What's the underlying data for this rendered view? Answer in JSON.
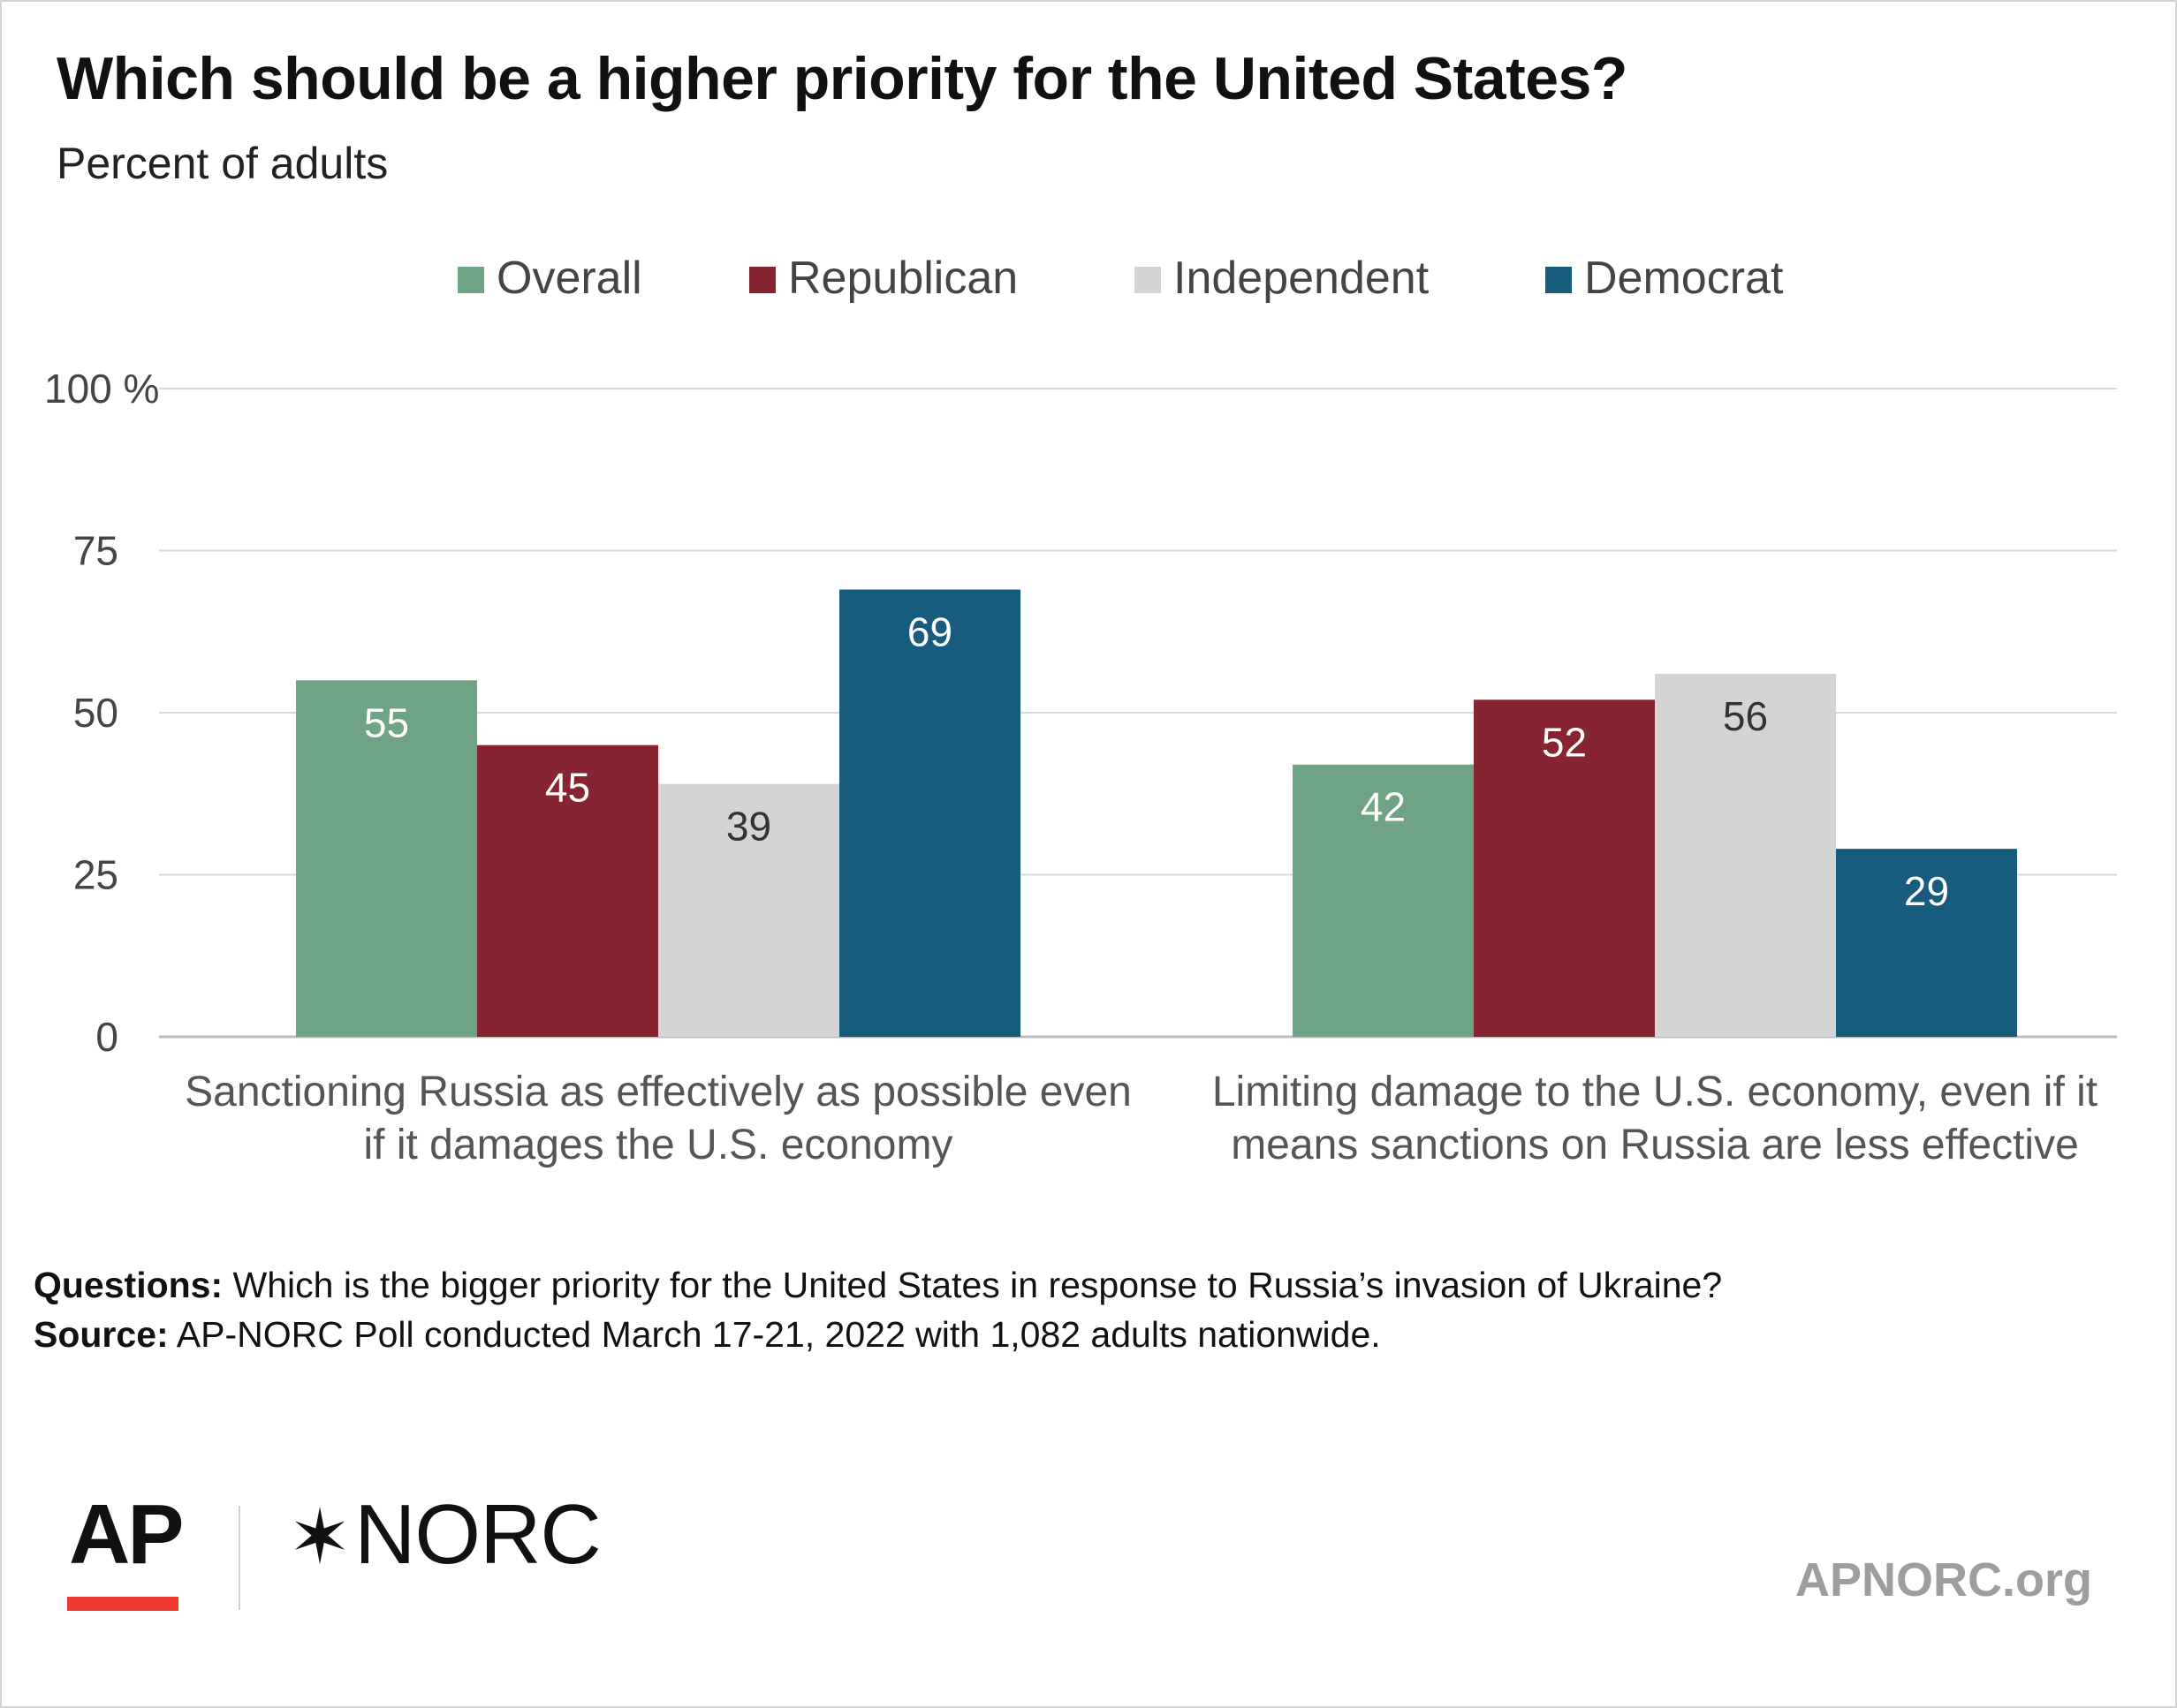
{
  "title": "Which should be a higher priority for the United States?",
  "subtitle": "Percent of adults",
  "chart_data": {
    "type": "bar",
    "categories": [
      [
        "Sanctioning Russia as effectively as possible even",
        "if it damages the U.S. economy"
      ],
      [
        "Limiting damage to the U.S. economy, even if it",
        "means sanctions on Russia are less effective"
      ]
    ],
    "series": [
      {
        "name": "Overall",
        "color": "#6fa386",
        "values": [
          55,
          42
        ],
        "label_color": "#ffffff"
      },
      {
        "name": "Republican",
        "color": "#862432",
        "values": [
          45,
          52
        ],
        "label_color": "#ffffff"
      },
      {
        "name": "Independent",
        "color": "#d4d4d4",
        "values": [
          39,
          56
        ],
        "label_color": "#333333"
      },
      {
        "name": "Democrat",
        "color": "#175c7c",
        "values": [
          69,
          29
        ],
        "label_color": "#ffffff"
      }
    ],
    "ylim": [
      0,
      100
    ],
    "yticks": [
      0,
      25,
      50,
      75,
      100
    ],
    "ytick_labels": [
      "0",
      "25",
      "50",
      "75",
      "100 %"
    ],
    "grid": true,
    "legend_position": "top-center"
  },
  "notes": {
    "questions_label": "Questions:",
    "questions_text": " Which is the bigger priority for the United States in response to Russia’s invasion of Ukraine?",
    "source_label": "Source:",
    "source_text": " AP-NORC Poll conducted March 17-21, 2022 with 1,082 adults nationwide."
  },
  "logos": {
    "ap": "AP",
    "norc_star": "✶",
    "norc": "NORC",
    "site": "APNORC.org"
  }
}
